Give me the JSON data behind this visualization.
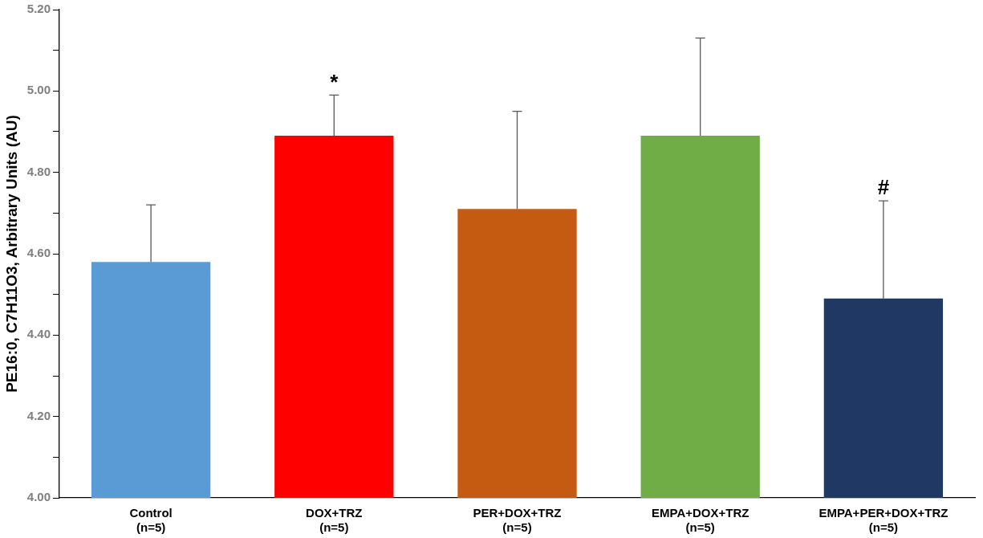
{
  "chart_data": {
    "type": "bar",
    "ylabel": "PE16:0, C7H11O3, Arbitrary Units (AU)",
    "categories": [
      "Control\n(n=5)",
      "DOX+TRZ\n(n=5)",
      "PER+DOX+TRZ\n(n=5)",
      "EMPA+DOX+TRZ\n(n=5)",
      "EMPA+PER+DOX+TRZ\n(n=5)"
    ],
    "values": [
      4.58,
      4.89,
      4.71,
      4.89,
      4.49
    ],
    "colors": [
      "#5b9bd5",
      "#ff0000",
      "#c55a11",
      "#70ad47",
      "#203864"
    ],
    "errors": [
      [
        4.58,
        4.72
      ],
      [
        4.89,
        4.99
      ],
      [
        4.71,
        4.95
      ],
      [
        4.89,
        5.13
      ],
      [
        4.49,
        4.73
      ]
    ],
    "ylim": [
      4.0,
      5.2
    ],
    "yticks": [
      {
        "value": 4.0,
        "label": "4.00"
      },
      {
        "value": 4.1,
        "label": null
      },
      {
        "value": 4.2,
        "label": "4.20"
      },
      {
        "value": 4.3,
        "label": null
      },
      {
        "value": 4.4,
        "label": "4.40"
      },
      {
        "value": 4.5,
        "label": null
      },
      {
        "value": 4.6,
        "label": "4.60"
      },
      {
        "value": 4.7,
        "label": null
      },
      {
        "value": 4.8,
        "label": "4.80"
      },
      {
        "value": 4.9,
        "label": null
      },
      {
        "value": 5.0,
        "label": "5.00"
      },
      {
        "value": 5.1,
        "label": null
      },
      {
        "value": 5.2,
        "label": "5.20"
      }
    ],
    "annotations": [
      {
        "text": "*",
        "x": "DOX+TRZ\n(n=5)",
        "y": 4.99
      },
      {
        "text": "#",
        "x": "EMPA+PER+DOX+TRZ\n(n=5)",
        "y": 4.73
      }
    ],
    "grid": false,
    "legend": false
  }
}
